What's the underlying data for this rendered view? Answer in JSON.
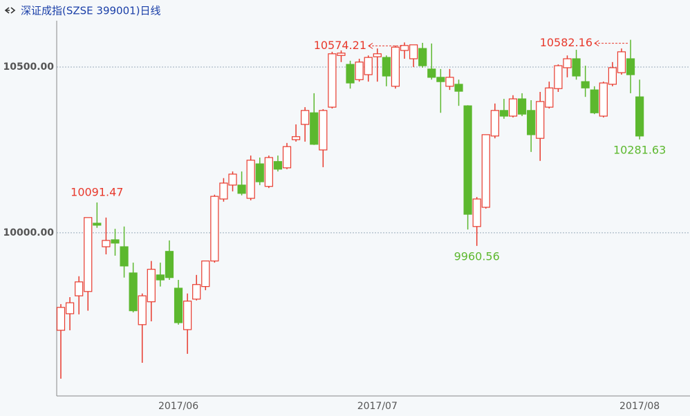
{
  "chart_data": {
    "type": "candlestick",
    "title": "深证成指(SZSE 399001)日线",
    "categories": [
      null,
      null,
      null,
      null,
      null,
      null,
      null,
      null,
      null,
      null,
      null,
      null,
      null,
      "2017/06",
      null,
      null,
      null,
      null,
      null,
      null,
      null,
      null,
      null,
      null,
      null,
      null,
      null,
      null,
      null,
      null,
      null,
      null,
      null,
      null,
      null,
      "2017/07",
      null,
      null,
      null,
      null,
      null,
      null,
      null,
      null,
      null,
      null,
      null,
      null,
      null,
      null,
      null,
      null,
      null,
      null,
      null,
      null,
      null,
      null,
      null,
      null,
      null,
      null,
      null,
      null,
      "2017/08"
    ],
    "open": [
      9706,
      9756,
      9810,
      9823,
      10029,
      9958,
      9979,
      9958,
      9879,
      9723,
      9792,
      9873,
      9944,
      9833,
      9708,
      9800,
      9838,
      9915,
      10102,
      10144,
      10144,
      10104,
      10208,
      10140,
      10215,
      10196,
      10281,
      10327,
      10362,
      10250,
      10379,
      10535,
      10508,
      10462,
      10477,
      10531,
      10529,
      10442,
      10550,
      10525,
      10556,
      10494,
      10469,
      10442,
      10448,
      10383,
      10019,
      10077,
      10292,
      10369,
      10352,
      10404,
      10369,
      10285,
      10379,
      10435,
      10498,
      10525,
      10456,
      10431,
      10352,
      10448,
      10483,
      10525,
      10410
    ],
    "high": [
      9785,
      9806,
      9869,
      10046,
      10091.47,
      10046,
      10012,
      10019,
      9910,
      9817,
      9915,
      9910,
      9977,
      9858,
      9817,
      9873,
      9915,
      10115,
      10165,
      10185,
      10185,
      10233,
      10227,
      10233,
      10233,
      10271,
      10327,
      10379,
      10421,
      10373,
      10546,
      10550,
      10519,
      10525,
      10535,
      10556,
      10535,
      10565,
      10574.21,
      10567,
      10573,
      10571,
      10494,
      10494,
      10462,
      10385,
      10108,
      10296,
      10390,
      10404,
      10415,
      10421,
      10400,
      10425,
      10456,
      10508,
      10535,
      10552,
      10504,
      10442,
      10456,
      10515,
      10556,
      10582.16,
      10462
    ],
    "low": [
      9560,
      9706,
      9754,
      9765,
      10015,
      9935,
      9931,
      9865,
      9760,
      9608,
      9733,
      9838,
      9858,
      9723,
      9635,
      9796,
      9827,
      9910,
      10094,
      10125,
      10113,
      10098,
      10144,
      10135,
      10185,
      10192,
      10275,
      10275,
      10265,
      10198,
      10375,
      10515,
      10435,
      10456,
      10456,
      10456,
      10442,
      10435,
      10525,
      10500,
      10498,
      10462,
      10362,
      10431,
      10383,
      10010,
      9960.56,
      10073,
      10285,
      10344,
      10348,
      10352,
      10244,
      10217,
      10375,
      10425,
      10469,
      10462,
      10410,
      10358,
      10348,
      10442,
      10477,
      10421,
      10281.63
    ],
    "close": [
      9775,
      9789,
      9852,
      10046,
      10023,
      9977,
      9969,
      9900,
      9765,
      9810,
      9890,
      9858,
      9865,
      9729,
      9794,
      9844,
      9915,
      10110,
      10150,
      10177,
      10119,
      10219,
      10154,
      10227,
      10192,
      10260,
      10290,
      10369,
      10267,
      10369,
      10540,
      10542,
      10452,
      10515,
      10529,
      10540,
      10473,
      10560,
      10565,
      10567,
      10504,
      10469,
      10456,
      10469,
      10427,
      10056,
      10102,
      10296,
      10369,
      10352,
      10404,
      10358,
      10296,
      10396,
      10437,
      10504,
      10525,
      10473,
      10437,
      10362,
      10452,
      10498,
      10546,
      10477,
      10292
    ],
    "up_color": "#e8392c",
    "down_color": "#5cb82e",
    "ylim": [
      9510,
      10598
    ],
    "yticks": [
      {
        "value": 10000,
        "label": "10000.00"
      },
      {
        "value": 10500,
        "label": "10500.00"
      }
    ],
    "grid": true,
    "annotations": [
      {
        "value": 10091.47,
        "arrow": false
      },
      {
        "value": 10574.21,
        "arrow": true
      },
      {
        "value": 10582.16,
        "arrow": true
      },
      {
        "value": 9960.56,
        "arrow": false
      },
      {
        "value": 10281.63,
        "arrow": false
      }
    ]
  }
}
